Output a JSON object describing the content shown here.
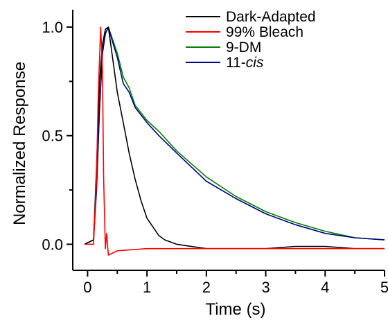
{
  "chart_data": {
    "type": "line",
    "xlabel": "Time (s)",
    "ylabel": "Normalized Response",
    "xlim": [
      -0.25,
      5.0
    ],
    "ylim": [
      -0.12,
      1.08
    ],
    "x_ticks": [
      0,
      1,
      2,
      3,
      4,
      5
    ],
    "y_ticks": [
      0.0,
      0.5,
      1.0
    ],
    "x_tick_labels": [
      "0",
      "1",
      "2",
      "3",
      "4",
      "5"
    ],
    "y_tick_labels": [
      "0.0",
      "0.5",
      "1.0"
    ],
    "grid": false,
    "legend_position": "top-right",
    "series": [
      {
        "name": "Dark-Adapted",
        "color": "#000000",
        "x": [
          -0.05,
          0.1,
          0.15,
          0.2,
          0.25,
          0.3,
          0.35,
          0.4,
          0.45,
          0.5,
          0.6,
          0.7,
          0.8,
          0.9,
          1.0,
          1.1,
          1.2,
          1.3,
          1.5,
          2.0,
          2.5,
          3.0,
          3.5,
          4.0,
          4.5,
          5.0
        ],
        "y": [
          0.0,
          0.02,
          0.35,
          0.75,
          0.92,
          0.99,
          1.0,
          0.9,
          0.8,
          0.7,
          0.56,
          0.42,
          0.3,
          0.2,
          0.12,
          0.08,
          0.04,
          0.02,
          0.0,
          -0.02,
          -0.02,
          -0.02,
          -0.01,
          -0.01,
          -0.02,
          -0.02
        ]
      },
      {
        "name": "99% Bleach",
        "color": "#ff0000",
        "x": [
          -0.05,
          0.1,
          0.15,
          0.18,
          0.22,
          0.25,
          0.27,
          0.3,
          0.32,
          0.35,
          0.5,
          1.0,
          1.5,
          2.0,
          2.5,
          3.0,
          3.5,
          4.0,
          4.5,
          5.0
        ],
        "y": [
          0.0,
          0.0,
          0.3,
          0.7,
          1.0,
          0.8,
          0.3,
          -0.02,
          0.05,
          -0.05,
          -0.03,
          -0.02,
          -0.02,
          -0.02,
          -0.02,
          -0.02,
          -0.02,
          -0.02,
          -0.02,
          -0.02
        ]
      },
      {
        "name": "9-DM",
        "color": "#008000",
        "x": [
          -0.05,
          0.1,
          0.15,
          0.2,
          0.25,
          0.3,
          0.35,
          0.4,
          0.5,
          0.6,
          0.7,
          0.8,
          1.0,
          1.2,
          1.5,
          2.0,
          2.5,
          3.0,
          3.5,
          4.0,
          4.5,
          5.0
        ],
        "y": [
          0.0,
          0.02,
          0.25,
          0.62,
          0.88,
          0.97,
          1.0,
          0.96,
          0.88,
          0.77,
          0.72,
          0.64,
          0.57,
          0.52,
          0.43,
          0.31,
          0.22,
          0.15,
          0.1,
          0.06,
          0.03,
          0.02
        ]
      },
      {
        "name": "11-cis",
        "name_prefix": "11-",
        "name_italic": "cis",
        "color": "#000080",
        "x": [
          -0.05,
          0.1,
          0.15,
          0.2,
          0.25,
          0.3,
          0.35,
          0.4,
          0.5,
          0.6,
          0.7,
          0.8,
          1.0,
          1.2,
          1.5,
          2.0,
          2.5,
          3.0,
          3.5,
          4.0,
          4.5,
          5.0
        ],
        "y": [
          0.0,
          0.02,
          0.25,
          0.62,
          0.88,
          0.97,
          1.0,
          0.95,
          0.86,
          0.74,
          0.7,
          0.63,
          0.56,
          0.5,
          0.42,
          0.29,
          0.21,
          0.14,
          0.09,
          0.05,
          0.03,
          0.02
        ]
      }
    ]
  }
}
